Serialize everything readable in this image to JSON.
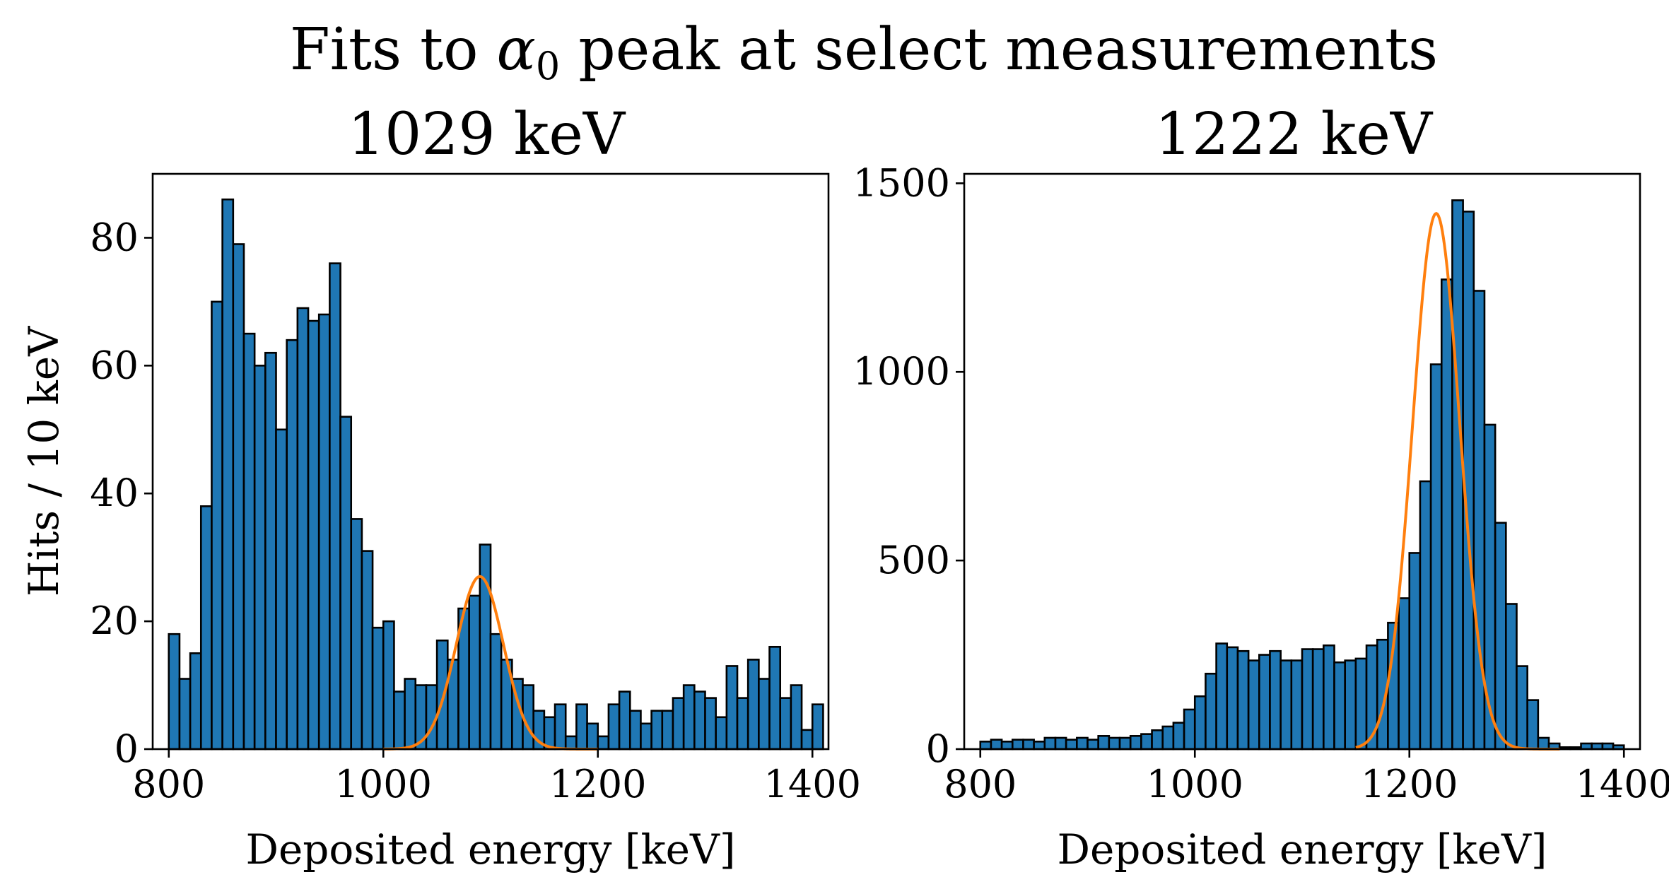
{
  "figure": {
    "suptitle_prefix": "Fits to ",
    "suptitle_symbol": "α",
    "suptitle_subscript": "0",
    "suptitle_suffix": " peak at select measurements"
  },
  "colors": {
    "bar_fill": "#1f77b4",
    "bar_edge": "#000000",
    "fit_line": "#ff7f0e"
  },
  "chart_data": [
    {
      "type": "bar",
      "title": "1029 keV",
      "xlabel": "Deposited energy [keV]",
      "ylabel": "Hits / 10 keV",
      "xlim": [
        785,
        1415
      ],
      "ylim": [
        0,
        90
      ],
      "xticks": [
        800,
        1000,
        1200,
        1400
      ],
      "yticks": [
        0,
        20,
        40,
        60,
        80
      ],
      "bin_start": 800,
      "bin_width": 10,
      "values": [
        18,
        11,
        15,
        38,
        70,
        86,
        79,
        65,
        60,
        62,
        50,
        64,
        69,
        67,
        68,
        76,
        52,
        36,
        31,
        19,
        20,
        9,
        11,
        10,
        10,
        17,
        14,
        22,
        24,
        32,
        18,
        14,
        11,
        10,
        6,
        5,
        7,
        2,
        7,
        4,
        2,
        7,
        9,
        6,
        4,
        6,
        6,
        8,
        10,
        9,
        8,
        5,
        13,
        8,
        14,
        11,
        16,
        8,
        10,
        3,
        7
      ],
      "series": [
        {
          "name": "",
          "kind": "gaussian_fit",
          "amplitude": 27,
          "mean": 1090,
          "sigma": 22,
          "x_range": [
            1000,
            1200
          ]
        }
      ]
    },
    {
      "type": "bar",
      "title": "1222 keV",
      "xlabel": "Deposited energy [keV]",
      "ylabel": "",
      "xlim": [
        785,
        1415
      ],
      "ylim": [
        0,
        1525
      ],
      "xticks": [
        800,
        1000,
        1200,
        1400
      ],
      "yticks": [
        0,
        500,
        1000,
        1500
      ],
      "bin_start": 800,
      "bin_width": 10,
      "values": [
        20,
        25,
        20,
        25,
        25,
        20,
        30,
        30,
        25,
        30,
        25,
        35,
        30,
        30,
        35,
        40,
        50,
        60,
        70,
        105,
        140,
        200,
        280,
        270,
        260,
        235,
        250,
        260,
        235,
        235,
        265,
        265,
        275,
        230,
        235,
        240,
        275,
        290,
        335,
        400,
        520,
        710,
        1020,
        1245,
        1455,
        1425,
        1215,
        860,
        600,
        385,
        220,
        130,
        30,
        15,
        5,
        5,
        15,
        15,
        15,
        10
      ],
      "series": [
        {
          "name": "",
          "kind": "gaussian_fit",
          "amplitude": 1420,
          "mean": 1225,
          "sigma": 22,
          "x_range": [
            1150,
            1340
          ]
        }
      ]
    }
  ]
}
